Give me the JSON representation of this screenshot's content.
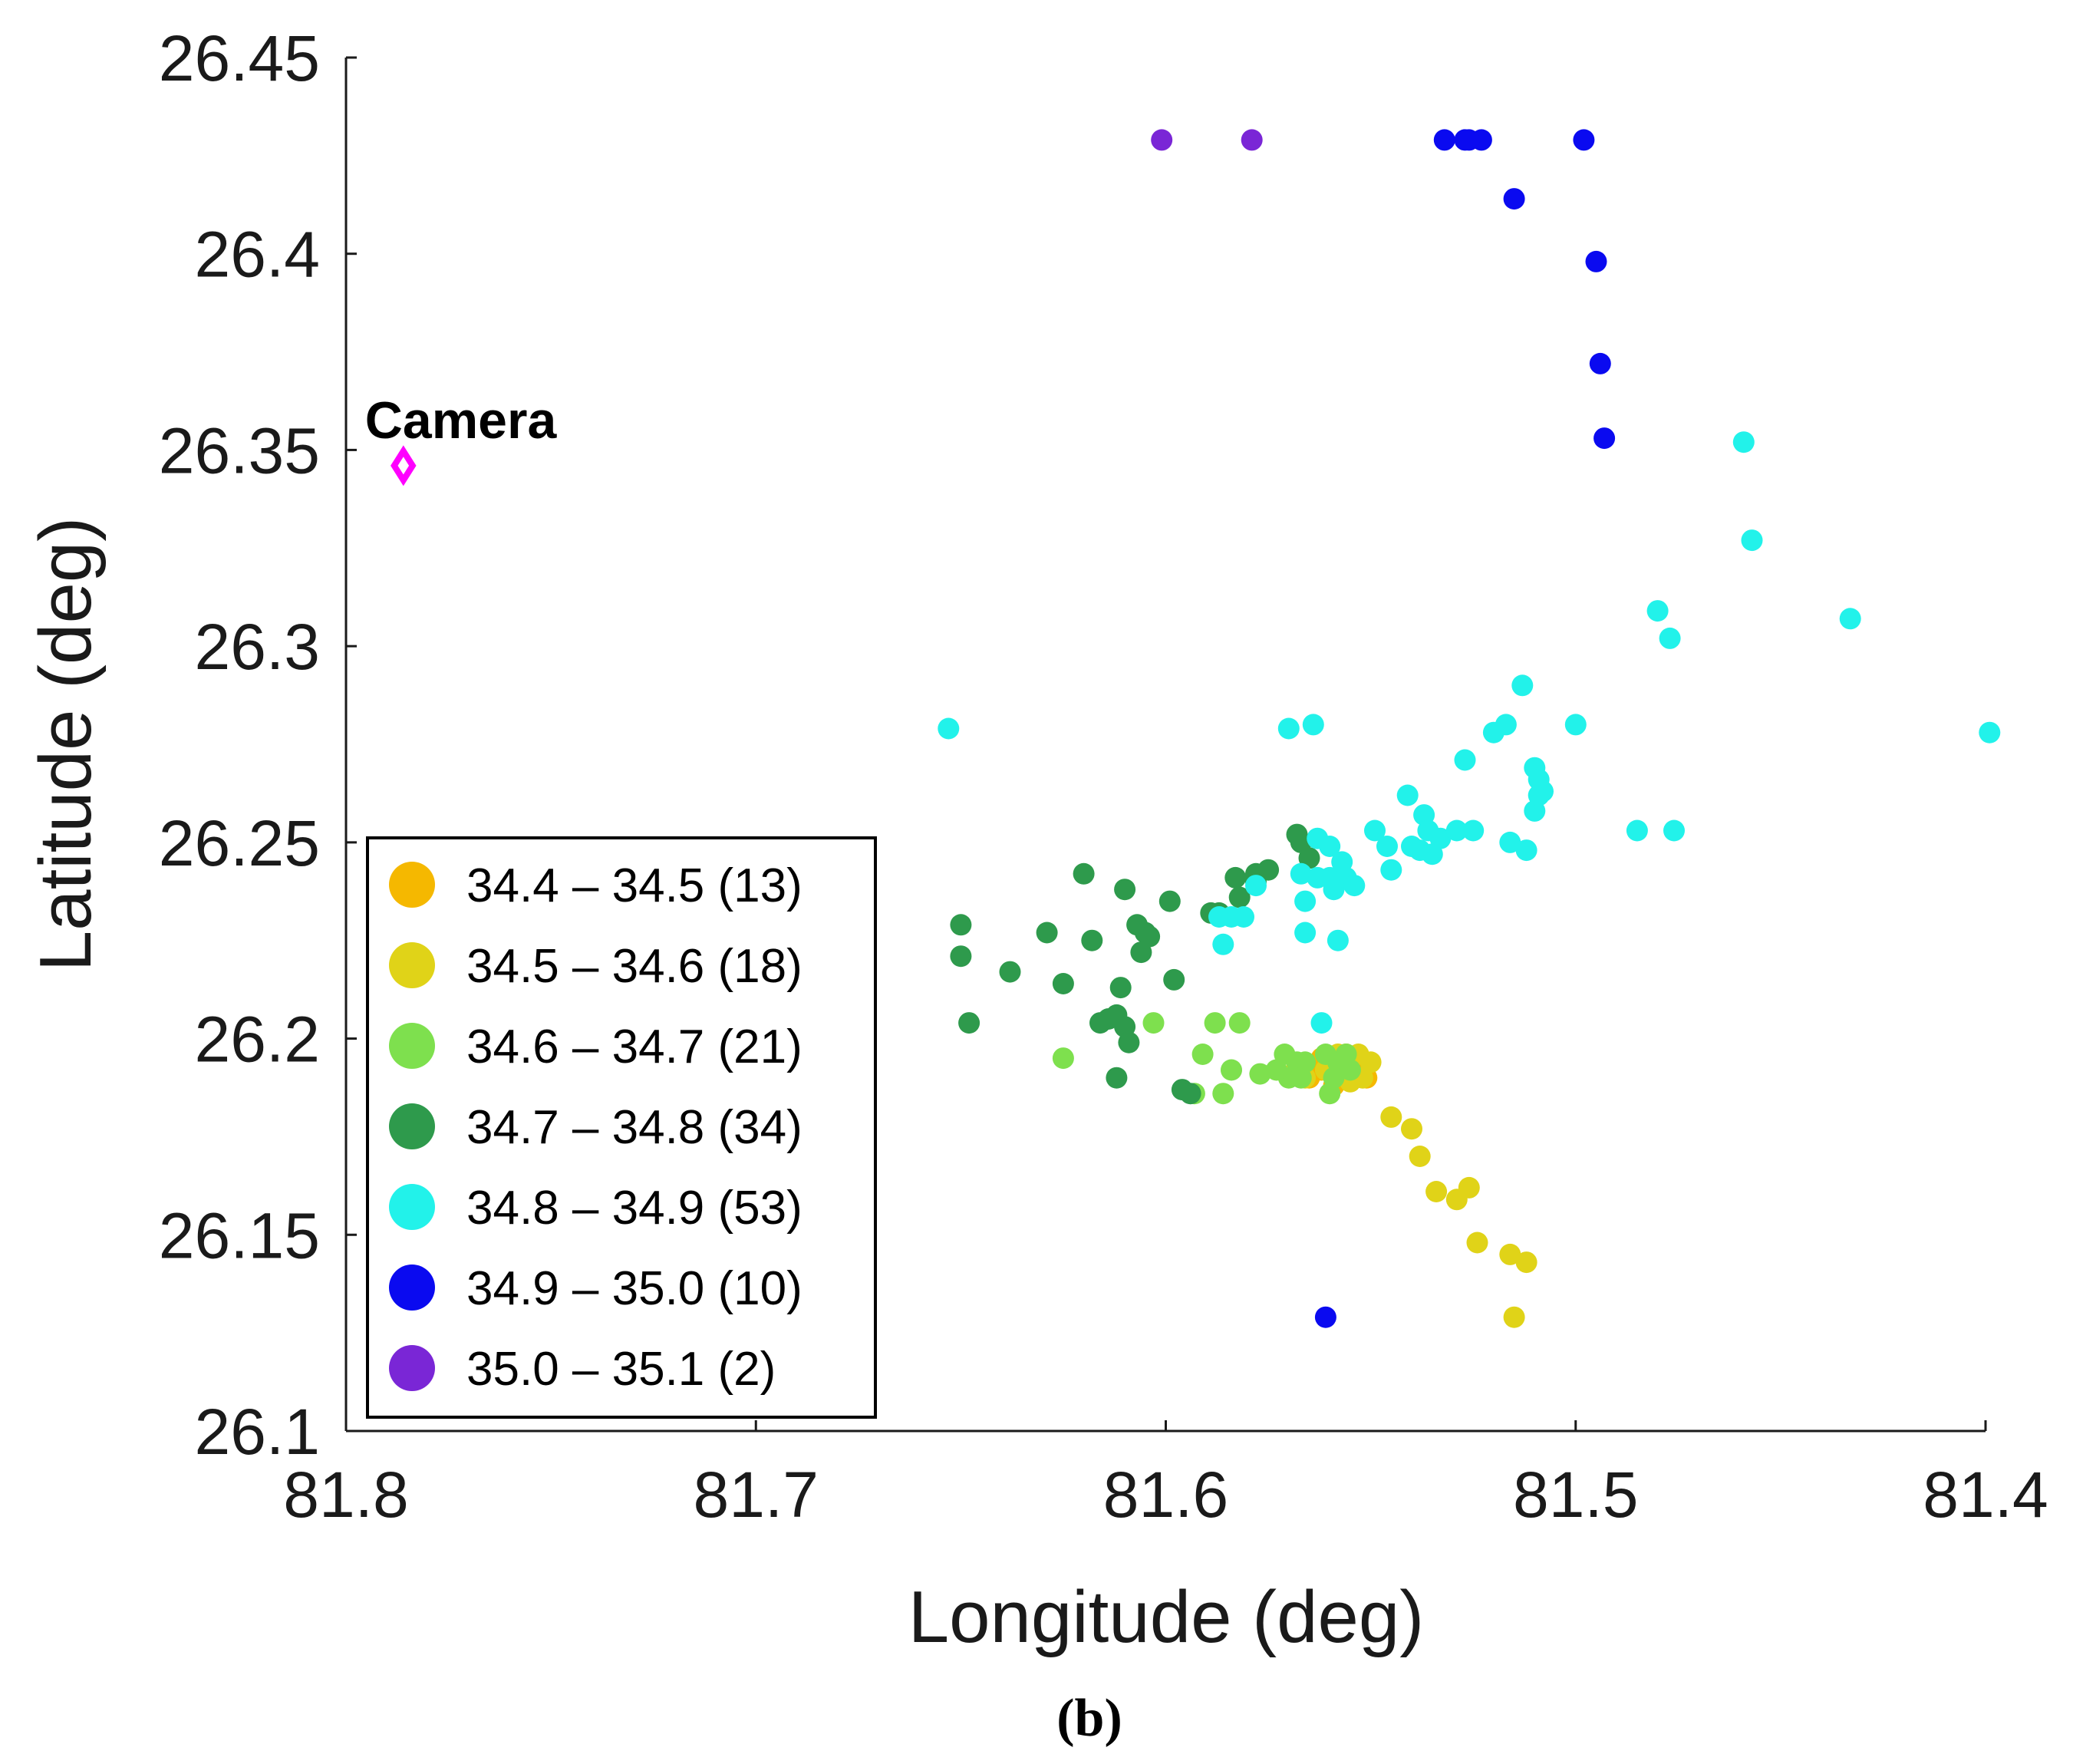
{
  "chart_data": {
    "type": "scatter",
    "xlabel": "Longitude (deg)",
    "ylabel": "Latitude (deg)",
    "xlim": [
      81.8,
      81.4
    ],
    "ylim": [
      26.1,
      26.45
    ],
    "x_ticks": [
      "81.8",
      "81.7",
      "81.6",
      "81.5",
      "81.4"
    ],
    "x_tick_values": [
      81.8,
      81.7,
      81.6,
      81.5,
      81.4
    ],
    "y_ticks": [
      "26.1",
      "26.15",
      "26.2",
      "26.25",
      "26.3",
      "26.35",
      "26.4",
      "26.45"
    ],
    "y_tick_values": [
      26.1,
      26.15,
      26.2,
      26.25,
      26.3,
      26.35,
      26.4,
      26.45
    ],
    "grid": false,
    "legend_position": "bottom-left",
    "panel_label": "(b)",
    "annotation": {
      "text": "Camera",
      "marker": "diamond",
      "color": "#ff00ff",
      "x": 81.786,
      "y": 26.346
    },
    "series": [
      {
        "name": "34.4 – 34.5 (13)",
        "color": "#f5b800",
        "points": [
          [
            81.562,
            26.192
          ],
          [
            81.56,
            26.194
          ],
          [
            81.558,
            26.192
          ],
          [
            81.556,
            26.196
          ],
          [
            81.554,
            26.191
          ],
          [
            81.564,
            26.193
          ],
          [
            81.559,
            26.188
          ],
          [
            81.552,
            26.194
          ],
          [
            81.562,
            26.195
          ],
          [
            81.557,
            26.19
          ],
          [
            81.551,
            26.19
          ],
          [
            81.553,
            26.195
          ],
          [
            81.565,
            26.19
          ]
        ]
      },
      {
        "name": "34.5 – 34.6 (18)",
        "color": "#e0d318",
        "points": [
          [
            81.55,
            26.194
          ],
          [
            81.545,
            26.18
          ],
          [
            81.54,
            26.177
          ],
          [
            81.538,
            26.17
          ],
          [
            81.534,
            26.161
          ],
          [
            81.529,
            26.159
          ],
          [
            81.526,
            26.162
          ],
          [
            81.524,
            26.148
          ],
          [
            81.516,
            26.145
          ],
          [
            81.512,
            26.143
          ],
          [
            81.515,
            26.129
          ],
          [
            81.553,
            26.196
          ],
          [
            81.552,
            26.19
          ],
          [
            81.566,
            26.19
          ],
          [
            81.569,
            26.191
          ],
          [
            81.561,
            26.192
          ],
          [
            81.558,
            26.196
          ],
          [
            81.555,
            26.189
          ]
        ]
      },
      {
        "name": "34.6 – 34.7 (21)",
        "color": "#7ee04e",
        "points": [
          [
            81.625,
            26.195
          ],
          [
            81.603,
            26.204
          ],
          [
            81.591,
            26.196
          ],
          [
            81.588,
            26.204
          ],
          [
            81.584,
            26.192
          ],
          [
            81.582,
            26.204
          ],
          [
            81.577,
            26.191
          ],
          [
            81.571,
            26.196
          ],
          [
            81.57,
            26.19
          ],
          [
            81.568,
            26.194
          ],
          [
            81.586,
            26.186
          ],
          [
            81.593,
            26.186
          ],
          [
            81.56,
            26.186
          ],
          [
            81.573,
            26.192
          ],
          [
            81.566,
            26.194
          ],
          [
            81.567,
            26.19
          ],
          [
            81.561,
            26.196
          ],
          [
            81.558,
            26.194
          ],
          [
            81.556,
            26.196
          ],
          [
            81.555,
            26.192
          ],
          [
            81.559,
            26.19
          ]
        ]
      },
      {
        "name": "34.7 – 34.8 (34)",
        "color": "#2e9a4c",
        "points": [
          [
            81.65,
            26.229
          ],
          [
            81.65,
            26.221
          ],
          [
            81.648,
            26.204
          ],
          [
            81.638,
            26.217
          ],
          [
            81.629,
            26.227
          ],
          [
            81.625,
            26.214
          ],
          [
            81.62,
            26.242
          ],
          [
            81.618,
            26.225
          ],
          [
            81.616,
            26.204
          ],
          [
            81.614,
            26.205
          ],
          [
            81.612,
            26.19
          ],
          [
            81.612,
            26.206
          ],
          [
            81.611,
            26.213
          ],
          [
            81.61,
            26.203
          ],
          [
            81.609,
            26.199
          ],
          [
            81.61,
            26.238
          ],
          [
            81.607,
            26.229
          ],
          [
            81.606,
            26.222
          ],
          [
            81.605,
            26.227
          ],
          [
            81.599,
            26.235
          ],
          [
            81.598,
            26.215
          ],
          [
            81.596,
            26.187
          ],
          [
            81.594,
            26.186
          ],
          [
            81.589,
            26.232
          ],
          [
            81.587,
            26.232
          ],
          [
            81.583,
            26.241
          ],
          [
            81.582,
            26.236
          ],
          [
            81.578,
            26.242
          ],
          [
            81.575,
            26.243
          ],
          [
            81.568,
            26.252
          ],
          [
            81.567,
            26.25
          ],
          [
            81.565,
            26.246
          ],
          [
            81.578,
            26.24
          ],
          [
            81.604,
            26.226
          ]
        ]
      },
      {
        "name": "34.8 – 34.9 (53)",
        "color": "#22f2ea",
        "points": [
          [
            81.653,
            26.279
          ],
          [
            81.587,
            26.231
          ],
          [
            81.586,
            26.224
          ],
          [
            81.584,
            26.231
          ],
          [
            81.581,
            26.231
          ],
          [
            81.578,
            26.239
          ],
          [
            81.57,
            26.279
          ],
          [
            81.567,
            26.242
          ],
          [
            81.566,
            26.235
          ],
          [
            81.566,
            26.227
          ],
          [
            81.563,
            26.251
          ],
          [
            81.563,
            26.241
          ],
          [
            81.562,
            26.204
          ],
          [
            81.56,
            26.249
          ],
          [
            81.56,
            26.241
          ],
          [
            81.559,
            26.238
          ],
          [
            81.558,
            26.225
          ],
          [
            81.557,
            26.245
          ],
          [
            81.556,
            26.241
          ],
          [
            81.554,
            26.239
          ],
          [
            81.549,
            26.253
          ],
          [
            81.546,
            26.249
          ],
          [
            81.545,
            26.243
          ],
          [
            81.541,
            26.262
          ],
          [
            81.54,
            26.249
          ],
          [
            81.538,
            26.248
          ],
          [
            81.537,
            26.257
          ],
          [
            81.536,
            26.253
          ],
          [
            81.535,
            26.247
          ],
          [
            81.533,
            26.251
          ],
          [
            81.529,
            26.253
          ],
          [
            81.527,
            26.271
          ],
          [
            81.525,
            26.253
          ],
          [
            81.52,
            26.278
          ],
          [
            81.517,
            26.28
          ],
          [
            81.516,
            26.25
          ],
          [
            81.513,
            26.29
          ],
          [
            81.512,
            26.248
          ],
          [
            81.51,
            26.269
          ],
          [
            81.51,
            26.258
          ],
          [
            81.509,
            26.262
          ],
          [
            81.508,
            26.263
          ],
          [
            81.509,
            26.266
          ],
          [
            81.5,
            26.28
          ],
          [
            81.485,
            26.253
          ],
          [
            81.48,
            26.309
          ],
          [
            81.477,
            26.302
          ],
          [
            81.476,
            26.253
          ],
          [
            81.459,
            26.352
          ],
          [
            81.457,
            26.327
          ],
          [
            81.433,
            26.307
          ],
          [
            81.399,
            26.278
          ],
          [
            81.564,
            26.28
          ]
        ]
      },
      {
        "name": "34.9 – 35.0 (10)",
        "color": "#0a0af0",
        "points": [
          [
            81.527,
            26.429
          ],
          [
            81.523,
            26.429
          ],
          [
            81.498,
            26.429
          ],
          [
            81.515,
            26.414
          ],
          [
            81.495,
            26.398
          ],
          [
            81.494,
            26.372
          ],
          [
            81.493,
            26.353
          ],
          [
            81.561,
            26.129
          ],
          [
            81.532,
            26.429
          ],
          [
            81.526,
            26.429
          ]
        ]
      },
      {
        "name": "35.0 – 35.1 (2)",
        "color": "#7a26d6",
        "points": [
          [
            81.601,
            26.429
          ],
          [
            81.579,
            26.429
          ]
        ]
      }
    ]
  }
}
